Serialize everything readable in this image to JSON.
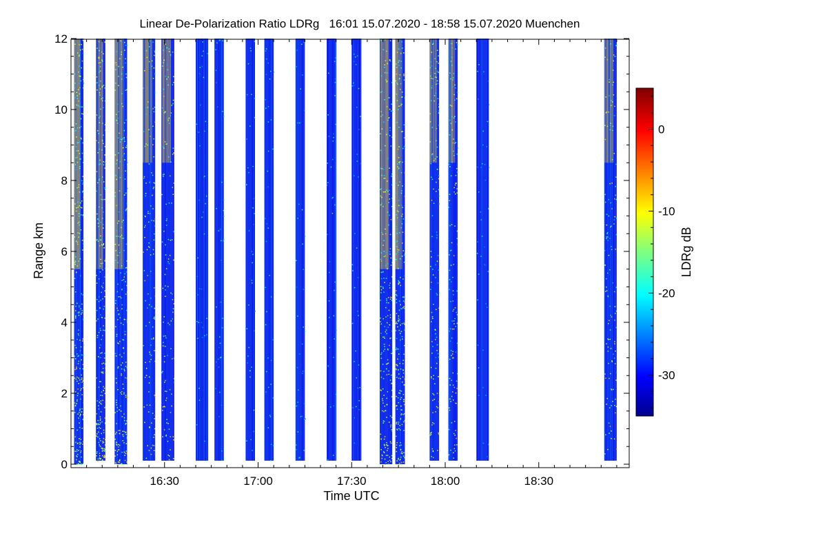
{
  "chart_data": {
    "type": "heatmap",
    "title": "Linear De-Polarization Ratio LDRg   16:01 15.07.2020 - 18:58 15.07.2020 Muenchen",
    "xlabel": "Time UTC",
    "ylabel": "Range km",
    "x_ticks": [
      "16:30",
      "17:00",
      "17:30",
      "18:00",
      "18:30"
    ],
    "y_ticks": [
      "0",
      "2",
      "4",
      "6",
      "8",
      "10",
      "12"
    ],
    "xlim": [
      "16:01",
      "18:58"
    ],
    "ylim": [
      0,
      12
    ],
    "colorbar": {
      "label": "LDRg dB",
      "range": [
        -35,
        5
      ],
      "ticks": [
        "0",
        "-10",
        "-20",
        "-30"
      ],
      "colormap": "jet"
    },
    "no_signal_color": "#808080",
    "measurement_blocks": [
      {
        "start": "16:01",
        "end": "16:04",
        "character": "noisy",
        "top_km": 12,
        "base_low_km": 0
      },
      {
        "start": "16:08",
        "end": "16:11",
        "character": "noisy",
        "top_km": 12,
        "base_low_km": 0.1
      },
      {
        "start": "16:14",
        "end": "16:18",
        "character": "noisy",
        "top_km": 12,
        "base_low_km": 0
      },
      {
        "start": "16:23",
        "end": "16:27",
        "character": "mixed",
        "top_km": 12,
        "base_low_km": 0.1
      },
      {
        "start": "16:29",
        "end": "16:33",
        "character": "mixed",
        "top_km": 12,
        "base_low_km": 0.1
      },
      {
        "start": "16:40",
        "end": "16:44",
        "character": "clean",
        "top_km": 12,
        "base_low_km": 0.1
      },
      {
        "start": "16:46",
        "end": "16:49",
        "character": "clean",
        "top_km": 12,
        "base_low_km": 0.1
      },
      {
        "start": "16:56",
        "end": "16:59",
        "character": "clean",
        "top_km": 12,
        "base_low_km": 0.1
      },
      {
        "start": "17:02",
        "end": "17:05",
        "character": "clean",
        "top_km": 12,
        "base_low_km": 0.1
      },
      {
        "start": "17:12",
        "end": "17:15",
        "character": "clean",
        "top_km": 12,
        "base_low_km": 0.1
      },
      {
        "start": "17:22",
        "end": "17:25",
        "character": "clean",
        "top_km": 12,
        "base_low_km": 0.1
      },
      {
        "start": "17:30",
        "end": "17:33",
        "character": "clean",
        "top_km": 12,
        "base_low_km": 0.1
      },
      {
        "start": "17:39",
        "end": "17:43",
        "character": "noisy",
        "top_km": 12,
        "base_low_km": 0
      },
      {
        "start": "17:44",
        "end": "17:47",
        "character": "noisy",
        "top_km": 12,
        "base_low_km": 0
      },
      {
        "start": "17:55",
        "end": "17:58",
        "character": "mixed",
        "top_km": 12,
        "base_low_km": 0.1
      },
      {
        "start": "18:01",
        "end": "18:04",
        "character": "mixed",
        "top_km": 12,
        "base_low_km": 0.1
      },
      {
        "start": "18:10",
        "end": "18:14",
        "character": "clean",
        "top_km": 12,
        "base_low_km": 0.1
      },
      {
        "start": "18:51",
        "end": "18:55",
        "character": "mixed",
        "top_km": 12,
        "base_low_km": 0.1
      }
    ]
  }
}
